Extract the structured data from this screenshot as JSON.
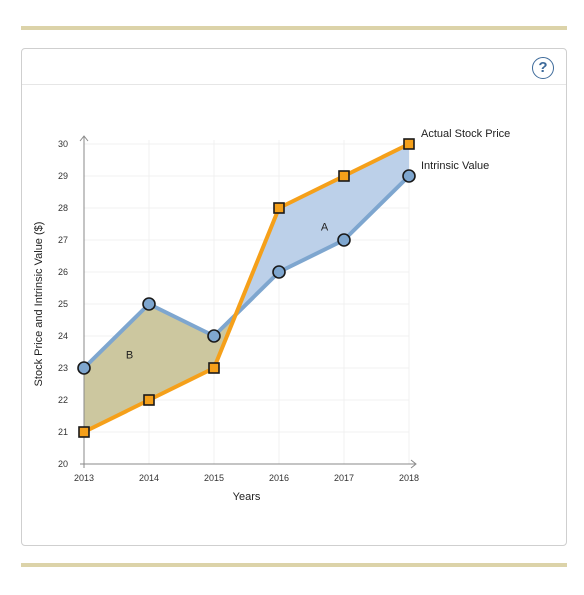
{
  "help": {
    "icon": "help-icon",
    "label": "?"
  },
  "chart_data": {
    "type": "line",
    "title": "",
    "xlabel": "Years",
    "ylabel": "Stock Price and Intrinsic Value ($)",
    "x": [
      2013,
      2014,
      2015,
      2016,
      2017,
      2018
    ],
    "x_ticks": [
      "2013",
      "2014",
      "2015",
      "2016",
      "2017",
      "2018"
    ],
    "y_ticks": [
      "20",
      "21",
      "22",
      "23",
      "24",
      "25",
      "26",
      "27",
      "28",
      "29",
      "30"
    ],
    "xlim": [
      2013,
      2018
    ],
    "ylim": [
      20,
      30
    ],
    "grid": true,
    "series": [
      {
        "name": "Actual Stock Price",
        "values": [
          21,
          22,
          23,
          28,
          29,
          30
        ],
        "color": "#f5a01a",
        "marker": "square"
      },
      {
        "name": "Intrinsic Value",
        "values": [
          23,
          25,
          24,
          26,
          27,
          29
        ],
        "color": "#7ea6cf",
        "marker": "circle"
      }
    ],
    "regions": [
      {
        "label": "B",
        "x": 2013.7,
        "y": 23.3,
        "fill": "#c9c49a"
      },
      {
        "label": "A",
        "x": 2016.7,
        "y": 27.3,
        "fill": "#b8cde8"
      }
    ]
  }
}
